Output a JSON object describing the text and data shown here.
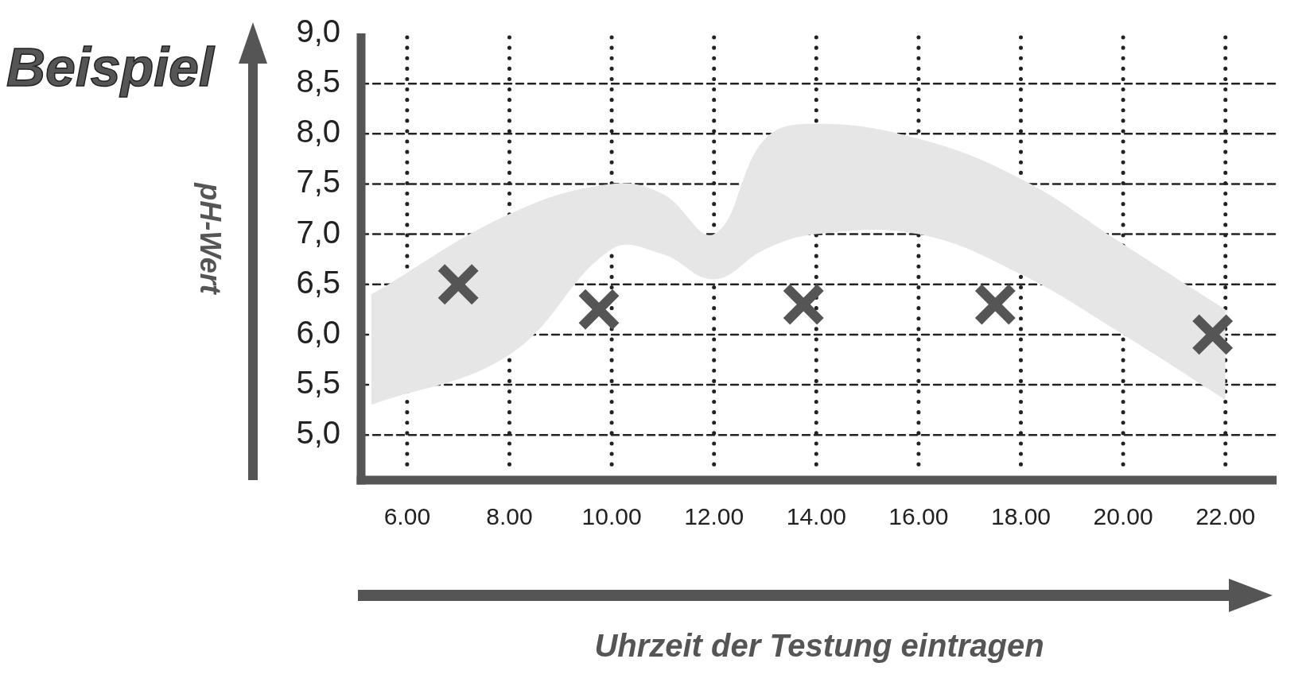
{
  "chart_data": {
    "type": "scatter",
    "title": "Beispiel",
    "ylabel": "pH-Wert",
    "xlabel": "Uhrzeit der Testung eintragen",
    "xlim": [
      5.1,
      23
    ],
    "ylim": [
      4.55,
      9
    ],
    "xticks": [
      {
        "value": 6,
        "label": "6.00"
      },
      {
        "value": 8,
        "label": "8.00"
      },
      {
        "value": 10,
        "label": "10.00"
      },
      {
        "value": 12,
        "label": "12.00"
      },
      {
        "value": 14,
        "label": "14.00"
      },
      {
        "value": 16,
        "label": "16.00"
      },
      {
        "value": 18,
        "label": "18.00"
      },
      {
        "value": 20,
        "label": "20.00"
      },
      {
        "value": 22,
        "label": "22.00"
      }
    ],
    "yticks": [
      {
        "value": 5,
        "label": "5,0"
      },
      {
        "value": 5.5,
        "label": "5,5"
      },
      {
        "value": 6,
        "label": "6,0"
      },
      {
        "value": 6.5,
        "label": "6,5"
      },
      {
        "value": 7,
        "label": "7,0"
      },
      {
        "value": 7.5,
        "label": "7,5"
      },
      {
        "value": 8,
        "label": "8,0"
      },
      {
        "value": 8.5,
        "label": "8,5"
      },
      {
        "value": 9,
        "label": "9,0"
      }
    ],
    "grid": true,
    "legend": false,
    "marker": "cross",
    "series": [
      {
        "type": "area",
        "color": "#e6e6e6",
        "x": [
          5.3,
          8,
          10,
          11,
          12,
          13,
          14,
          16,
          18,
          20,
          22
        ],
        "values": [
          null,
          null,
          null,
          null,
          null,
          null,
          null,
          null,
          null,
          null,
          null
        ],
        "lower": [
          5.3,
          5.8,
          6.85,
          6.8,
          6.55,
          6.85,
          7.0,
          7.0,
          6.6,
          6.0,
          5.35
        ],
        "upper": [
          6.4,
          7.2,
          7.5,
          7.4,
          7.0,
          7.95,
          8.1,
          7.95,
          7.55,
          6.9,
          6.25
        ]
      },
      {
        "type": "scatter",
        "color": "#555555",
        "x": [
          7,
          9.75,
          13.75,
          17.5,
          21.75
        ],
        "values": [
          6.5,
          6.25,
          6.3,
          6.3,
          6.0
        ]
      }
    ]
  }
}
